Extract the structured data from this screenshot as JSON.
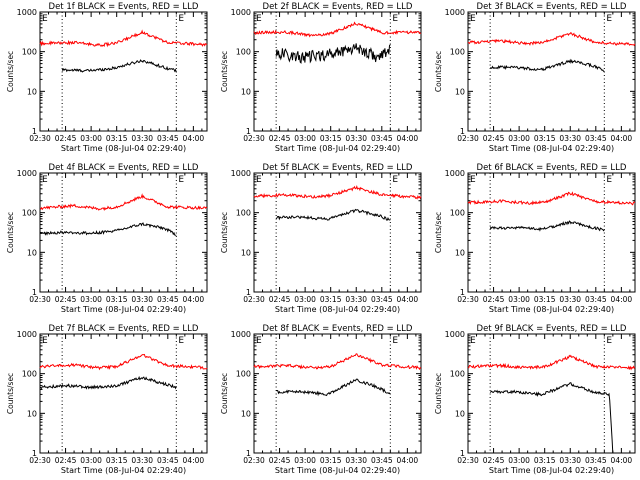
{
  "figure": {
    "colors": {
      "events": "#000000",
      "lld": "#ff0000",
      "axes": "#000000",
      "background": "#ffffff"
    },
    "shared": {
      "ylabel": "Counts/sec",
      "xlabel": "Start Time (08-Jul-04 02:29:40)",
      "x_tick_labels": [
        "02:30",
        "02:45",
        "03:00",
        "03:15",
        "03:30",
        "03:45",
        "04:00"
      ],
      "y_tick_labels": [
        "1",
        "10",
        "100",
        "1000"
      ],
      "corner_marker": "E"
    }
  },
  "chart_data": [
    {
      "type": "line",
      "title": "Det 1f BLACK = Events, RED = LLD",
      "xlabel": "Start Time (08-Jul-04 02:29:40)",
      "ylabel": "Counts/sec",
      "yscale": "log",
      "xlim": [
        "02:30",
        "04:08"
      ],
      "ylim": [
        1,
        1000
      ],
      "x_ticks": [
        "02:30",
        "02:45",
        "03:00",
        "03:15",
        "03:30",
        "03:45",
        "04:00"
      ],
      "y_ticks": [
        1,
        10,
        100,
        1000
      ],
      "markers": [
        "02:43",
        "03:50"
      ],
      "series": [
        {
          "name": "Events",
          "color": "#000000",
          "x_start": "02:43",
          "x_end": "03:50",
          "points": [
            [
              "02:43",
              35
            ],
            [
              "02:58",
              33
            ],
            [
              "03:13",
              38
            ],
            [
              "03:30",
              60
            ],
            [
              "03:43",
              40
            ],
            [
              "03:50",
              33
            ]
          ]
        },
        {
          "name": "LLD",
          "color": "#ff0000",
          "x_start": "02:30",
          "x_end": "04:08",
          "points": [
            [
              "02:30",
              160
            ],
            [
              "02:50",
              170
            ],
            [
              "03:05",
              145
            ],
            [
              "03:15",
              165
            ],
            [
              "03:30",
              310
            ],
            [
              "03:45",
              170
            ],
            [
              "04:08",
              150
            ]
          ]
        }
      ]
    },
    {
      "type": "line",
      "title": "Det 2f BLACK = Events, RED = LLD",
      "xlabel": "Start Time (08-Jul-04 02:29:40)",
      "ylabel": "Counts/sec",
      "yscale": "log",
      "xlim": [
        "02:30",
        "04:08"
      ],
      "ylim": [
        1,
        1000
      ],
      "x_ticks": [
        "02:30",
        "02:45",
        "03:00",
        "03:15",
        "03:30",
        "03:45",
        "04:00"
      ],
      "y_ticks": [
        1,
        10,
        100,
        1000
      ],
      "markers": [
        "02:43",
        "03:50"
      ],
      "series": [
        {
          "name": "Events",
          "color": "#000000",
          "x_start": "02:43",
          "x_end": "03:50",
          "points": [
            [
              "02:43",
              95
            ],
            [
              "02:58",
              70
            ],
            [
              "03:13",
              85
            ],
            [
              "03:30",
              130
            ],
            [
              "03:43",
              70
            ],
            [
              "03:50",
              110
            ]
          ]
        },
        {
          "name": "LLD",
          "color": "#ff0000",
          "x_start": "02:30",
          "x_end": "04:08",
          "points": [
            [
              "02:30",
              300
            ],
            [
              "02:50",
              310
            ],
            [
              "03:05",
              250
            ],
            [
              "03:15",
              290
            ],
            [
              "03:30",
              520
            ],
            [
              "03:45",
              300
            ],
            [
              "04:08",
              310
            ]
          ]
        }
      ]
    },
    {
      "type": "line",
      "title": "Det 3f BLACK = Events, RED = LLD",
      "xlabel": "Start Time (08-Jul-04 02:29:40)",
      "ylabel": "Counts/sec",
      "yscale": "log",
      "xlim": [
        "02:30",
        "04:08"
      ],
      "ylim": [
        1,
        1000
      ],
      "x_ticks": [
        "02:30",
        "02:45",
        "03:00",
        "03:15",
        "03:30",
        "03:45",
        "04:00"
      ],
      "y_ticks": [
        1,
        10,
        100,
        1000
      ],
      "markers": [
        "02:43",
        "03:50"
      ],
      "series": [
        {
          "name": "Events",
          "color": "#000000",
          "x_start": "02:43",
          "x_end": "03:50",
          "points": [
            [
              "02:43",
              40
            ],
            [
              "02:58",
              40
            ],
            [
              "03:13",
              35
            ],
            [
              "03:30",
              58
            ],
            [
              "03:43",
              45
            ],
            [
              "03:50",
              33
            ]
          ]
        },
        {
          "name": "LLD",
          "color": "#ff0000",
          "x_start": "02:30",
          "x_end": "04:08",
          "points": [
            [
              "02:30",
              170
            ],
            [
              "02:50",
              185
            ],
            [
              "03:05",
              160
            ],
            [
              "03:15",
              175
            ],
            [
              "03:30",
              290
            ],
            [
              "03:45",
              170
            ],
            [
              "04:08",
              150
            ]
          ]
        }
      ]
    },
    {
      "type": "line",
      "title": "Det 4f BLACK = Events, RED = LLD",
      "xlabel": "Start Time (08-Jul-04 02:29:40)",
      "ylabel": "Counts/sec",
      "yscale": "log",
      "xlim": [
        "02:30",
        "04:08"
      ],
      "ylim": [
        1,
        1000
      ],
      "x_ticks": [
        "02:30",
        "02:45",
        "03:00",
        "03:15",
        "03:30",
        "03:45",
        "04:00"
      ],
      "y_ticks": [
        1,
        10,
        100,
        1000
      ],
      "markers": [
        "02:43",
        "03:50"
      ],
      "series": [
        {
          "name": "Events",
          "color": "#000000",
          "x_start": "02:30",
          "x_end": "03:50",
          "points": [
            [
              "02:30",
              30
            ],
            [
              "02:45",
              32
            ],
            [
              "03:00",
              30
            ],
            [
              "03:15",
              35
            ],
            [
              "03:30",
              52
            ],
            [
              "03:43",
              40
            ],
            [
              "03:50",
              28
            ]
          ]
        },
        {
          "name": "LLD",
          "color": "#ff0000",
          "x_start": "02:30",
          "x_end": "04:08",
          "points": [
            [
              "02:30",
              130
            ],
            [
              "02:50",
              150
            ],
            [
              "03:05",
              125
            ],
            [
              "03:15",
              140
            ],
            [
              "03:30",
              260
            ],
            [
              "03:45",
              140
            ],
            [
              "04:08",
              130
            ]
          ]
        }
      ]
    },
    {
      "type": "line",
      "title": "Det 5f BLACK = Events, RED = LLD",
      "xlabel": "Start Time (08-Jul-04 02:29:40)",
      "ylabel": "Counts/sec",
      "yscale": "log",
      "xlim": [
        "02:30",
        "04:08"
      ],
      "ylim": [
        1,
        1000
      ],
      "x_ticks": [
        "02:30",
        "02:45",
        "03:00",
        "03:15",
        "03:30",
        "03:45",
        "04:00"
      ],
      "y_ticks": [
        1,
        10,
        100,
        1000
      ],
      "markers": [
        "02:43",
        "03:50"
      ],
      "series": [
        {
          "name": "Events",
          "color": "#000000",
          "x_start": "02:43",
          "x_end": "03:50",
          "points": [
            [
              "02:43",
              75
            ],
            [
              "02:58",
              78
            ],
            [
              "03:13",
              68
            ],
            [
              "03:30",
              115
            ],
            [
              "03:43",
              85
            ],
            [
              "03:50",
              65
            ]
          ]
        },
        {
          "name": "LLD",
          "color": "#ff0000",
          "x_start": "02:30",
          "x_end": "04:08",
          "points": [
            [
              "02:30",
              260
            ],
            [
              "02:50",
              280
            ],
            [
              "03:05",
              250
            ],
            [
              "03:15",
              270
            ],
            [
              "03:30",
              430
            ],
            [
              "03:45",
              280
            ],
            [
              "04:08",
              240
            ]
          ]
        }
      ]
    },
    {
      "type": "line",
      "title": "Det 6f BLACK = Events, RED = LLD",
      "xlabel": "Start Time (08-Jul-04 02:29:40)",
      "ylabel": "Counts/sec",
      "yscale": "log",
      "xlim": [
        "02:30",
        "04:08"
      ],
      "ylim": [
        1,
        1000
      ],
      "x_ticks": [
        "02:30",
        "02:45",
        "03:00",
        "03:15",
        "03:30",
        "03:45",
        "04:00"
      ],
      "y_ticks": [
        1,
        10,
        100,
        1000
      ],
      "markers": [
        "02:43",
        "03:50"
      ],
      "series": [
        {
          "name": "Events",
          "color": "#000000",
          "x_start": "02:43",
          "x_end": "03:50",
          "points": [
            [
              "02:43",
              40
            ],
            [
              "02:58",
              42
            ],
            [
              "03:13",
              38
            ],
            [
              "03:30",
              58
            ],
            [
              "03:43",
              42
            ],
            [
              "03:50",
              36
            ]
          ]
        },
        {
          "name": "LLD",
          "color": "#ff0000",
          "x_start": "02:30",
          "x_end": "04:08",
          "points": [
            [
              "02:30",
              180
            ],
            [
              "02:50",
              195
            ],
            [
              "03:05",
              175
            ],
            [
              "03:15",
              185
            ],
            [
              "03:30",
              310
            ],
            [
              "03:45",
              190
            ],
            [
              "04:08",
              170
            ]
          ]
        }
      ]
    },
    {
      "type": "line",
      "title": "Det 7f BLACK = Events, RED = LLD",
      "xlabel": "Start Time (08-Jul-04 02:29:40)",
      "ylabel": "Counts/sec",
      "yscale": "log",
      "xlim": [
        "02:30",
        "04:08"
      ],
      "ylim": [
        1,
        1000
      ],
      "x_ticks": [
        "02:30",
        "02:45",
        "03:00",
        "03:15",
        "03:30",
        "03:45",
        "04:00"
      ],
      "y_ticks": [
        1,
        10,
        100,
        1000
      ],
      "markers": [
        "02:43",
        "03:50"
      ],
      "series": [
        {
          "name": "Events",
          "color": "#000000",
          "x_start": "02:30",
          "x_end": "03:50",
          "points": [
            [
              "02:30",
              45
            ],
            [
              "02:45",
              50
            ],
            [
              "03:00",
              45
            ],
            [
              "03:15",
              50
            ],
            [
              "03:30",
              80
            ],
            [
              "03:43",
              55
            ],
            [
              "03:50",
              45
            ]
          ]
        },
        {
          "name": "LLD",
          "color": "#ff0000",
          "x_start": "02:30",
          "x_end": "04:08",
          "points": [
            [
              "02:30",
              150
            ],
            [
              "02:50",
              165
            ],
            [
              "03:05",
              140
            ],
            [
              "03:15",
              150
            ],
            [
              "03:30",
              300
            ],
            [
              "03:45",
              160
            ],
            [
              "04:08",
              140
            ]
          ]
        }
      ]
    },
    {
      "type": "line",
      "title": "Det 8f BLACK = Events, RED = LLD",
      "xlabel": "Start Time (08-Jul-04 02:29:40)",
      "ylabel": "Counts/sec",
      "yscale": "log",
      "xlim": [
        "02:30",
        "04:08"
      ],
      "ylim": [
        1,
        1000
      ],
      "x_ticks": [
        "02:30",
        "02:45",
        "03:00",
        "03:15",
        "03:30",
        "03:45",
        "04:00"
      ],
      "y_ticks": [
        1,
        10,
        100,
        1000
      ],
      "markers": [
        "02:43",
        "03:50"
      ],
      "series": [
        {
          "name": "Events",
          "color": "#000000",
          "x_start": "02:43",
          "x_end": "03:50",
          "points": [
            [
              "02:43",
              35
            ],
            [
              "02:58",
              35
            ],
            [
              "03:13",
              30
            ],
            [
              "03:30",
              70
            ],
            [
              "03:43",
              45
            ],
            [
              "03:50",
              30
            ]
          ]
        },
        {
          "name": "LLD",
          "color": "#ff0000",
          "x_start": "02:30",
          "x_end": "04:08",
          "points": [
            [
              "02:30",
              150
            ],
            [
              "02:50",
              160
            ],
            [
              "03:05",
              140
            ],
            [
              "03:15",
              150
            ],
            [
              "03:30",
              300
            ],
            [
              "03:45",
              165
            ],
            [
              "04:08",
              140
            ]
          ]
        }
      ]
    },
    {
      "type": "line",
      "title": "Det 9f BLACK = Events, RED = LLD",
      "xlabel": "Start Time (08-Jul-04 02:29:40)",
      "ylabel": "Counts/sec",
      "yscale": "log",
      "xlim": [
        "02:30",
        "04:08"
      ],
      "ylim": [
        1,
        1000
      ],
      "x_ticks": [
        "02:30",
        "02:45",
        "03:00",
        "03:15",
        "03:30",
        "03:45",
        "04:00"
      ],
      "y_ticks": [
        1,
        10,
        100,
        1000
      ],
      "markers": [
        "02:43",
        "03:50"
      ],
      "series": [
        {
          "name": "Events",
          "color": "#000000",
          "x_start": "02:43",
          "x_end": "03:55",
          "points": [
            [
              "02:43",
              35
            ],
            [
              "02:58",
              35
            ],
            [
              "03:13",
              30
            ],
            [
              "03:30",
              55
            ],
            [
              "03:43",
              35
            ],
            [
              "03:53",
              30
            ],
            [
              "03:55",
              1
            ]
          ]
        },
        {
          "name": "LLD",
          "color": "#ff0000",
          "x_start": "02:30",
          "x_end": "04:08",
          "points": [
            [
              "02:30",
              150
            ],
            [
              "02:50",
              160
            ],
            [
              "03:05",
              140
            ],
            [
              "03:15",
              150
            ],
            [
              "03:30",
              270
            ],
            [
              "03:45",
              150
            ],
            [
              "04:08",
              140
            ]
          ]
        }
      ]
    }
  ]
}
